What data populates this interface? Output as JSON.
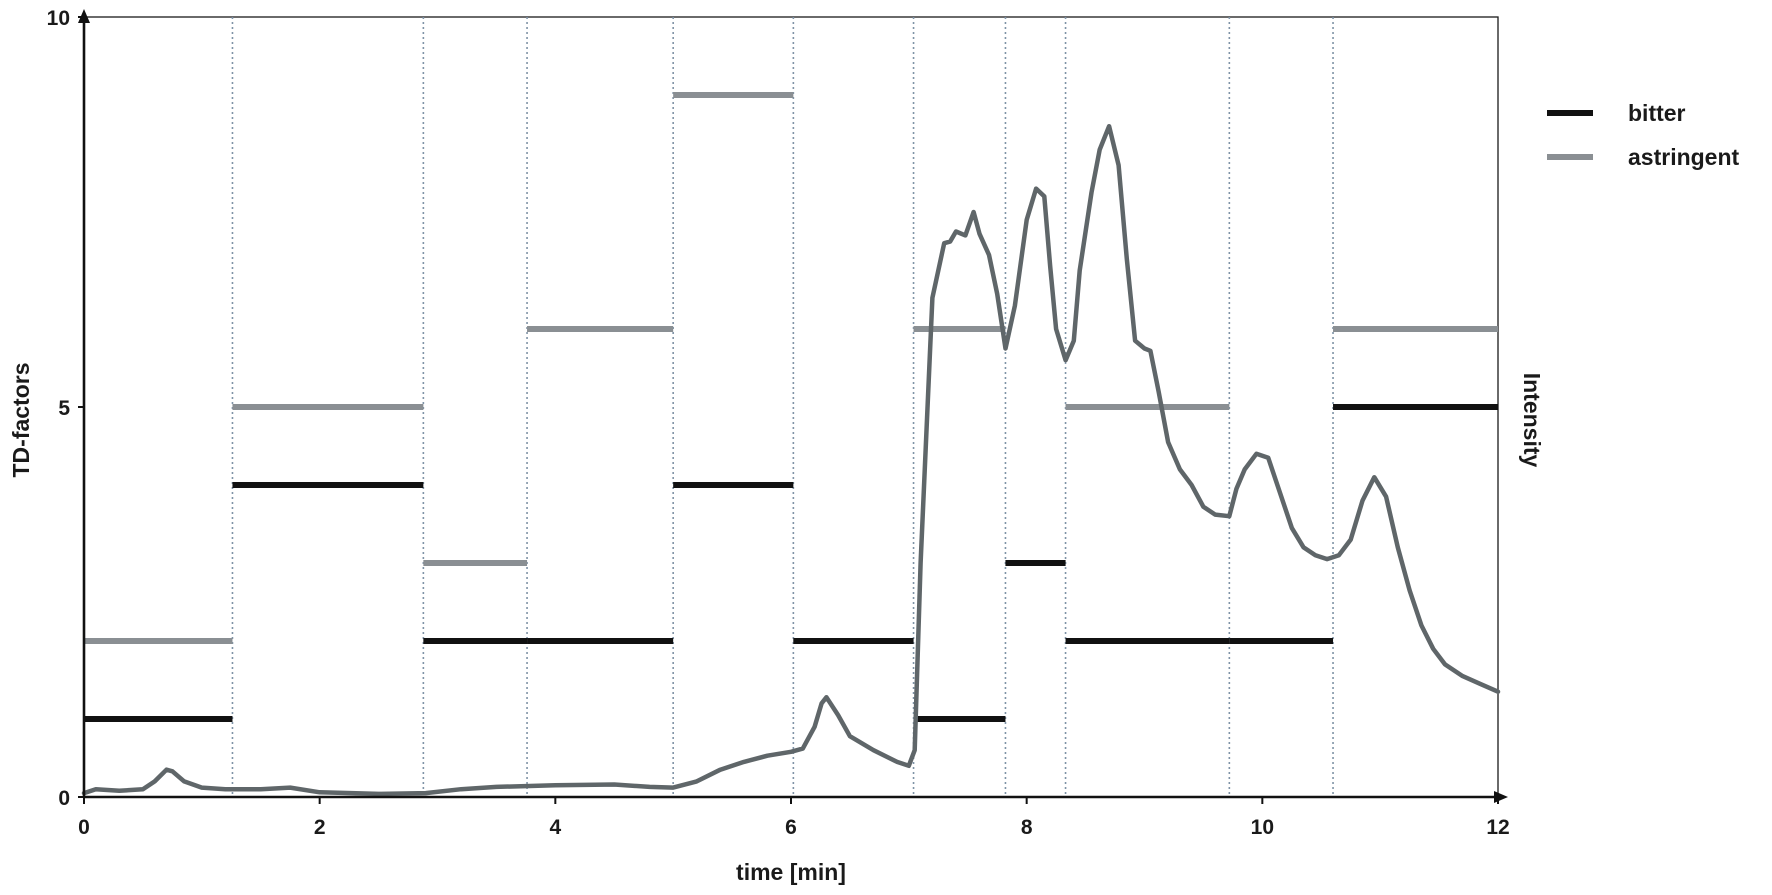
{
  "chart_data": {
    "type": "line",
    "xlabel": "time [min]",
    "ylabel": "TD-factors",
    "y2label": "Intensity",
    "xlim": [
      0,
      12
    ],
    "ylim": [
      0,
      10
    ],
    "xticks": [
      {
        "value": 0,
        "label": "0"
      },
      {
        "value": 2,
        "label": "2"
      },
      {
        "value": 4,
        "label": "4"
      },
      {
        "value": 6,
        "label": "6"
      },
      {
        "value": 8,
        "label": "8"
      },
      {
        "value": 10,
        "label": "10"
      },
      {
        "value": 12,
        "label": "12"
      }
    ],
    "yticks": [
      {
        "value": 0,
        "label": "0"
      },
      {
        "value": 5,
        "label": "5"
      },
      {
        "value": 10,
        "label": "10"
      }
    ],
    "fraction_boundaries": [
      1.26,
      2.88,
      3.76,
      5.0,
      6.02,
      7.04,
      7.82,
      8.33,
      9.72,
      10.6
    ],
    "legend": {
      "position": "right",
      "entries": [
        {
          "name": "bitter",
          "color": "#111111"
        },
        {
          "name": "astringent",
          "color": "#8a8f93"
        }
      ]
    },
    "series": [
      {
        "name": "bitter",
        "type": "segments",
        "color": "#111111",
        "segments": [
          {
            "x0": 0,
            "x1": 1.26,
            "y": 1
          },
          {
            "x0": 1.26,
            "x1": 2.88,
            "y": 4
          },
          {
            "x0": 2.88,
            "x1": 3.76,
            "y": 2
          },
          {
            "x0": 3.76,
            "x1": 5.0,
            "y": 2
          },
          {
            "x0": 5.0,
            "x1": 6.02,
            "y": 4
          },
          {
            "x0": 6.02,
            "x1": 7.04,
            "y": 2
          },
          {
            "x0": 7.04,
            "x1": 7.82,
            "y": 1
          },
          {
            "x0": 7.82,
            "x1": 8.33,
            "y": 3
          },
          {
            "x0": 8.33,
            "x1": 9.72,
            "y": 2
          },
          {
            "x0": 9.72,
            "x1": 10.6,
            "y": 2
          },
          {
            "x0": 10.6,
            "x1": 12.0,
            "y": 5
          }
        ]
      },
      {
        "name": "astringent",
        "type": "segments",
        "color": "#8a8f93",
        "segments": [
          {
            "x0": 0,
            "x1": 1.26,
            "y": 2
          },
          {
            "x0": 1.26,
            "x1": 2.88,
            "y": 5
          },
          {
            "x0": 2.88,
            "x1": 3.76,
            "y": 3
          },
          {
            "x0": 3.76,
            "x1": 5.0,
            "y": 6
          },
          {
            "x0": 5.0,
            "x1": 6.02,
            "y": 9
          },
          {
            "x0": 6.02,
            "x1": 7.04,
            "y": 2
          },
          {
            "x0": 7.04,
            "x1": 7.82,
            "y": 6
          },
          {
            "x0": 7.82,
            "x1": 8.33,
            "y": 3
          },
          {
            "x0": 8.33,
            "x1": 9.72,
            "y": 5
          },
          {
            "x0": 9.72,
            "x1": 10.6,
            "y": 2
          },
          {
            "x0": 10.6,
            "x1": 12.0,
            "y": 6
          }
        ]
      },
      {
        "type": "line",
        "color": "#5f6669",
        "x": [
          0,
          0.1,
          0.3,
          0.5,
          0.6,
          0.7,
          0.75,
          0.85,
          1.0,
          1.2,
          1.5,
          1.75,
          2.0,
          2.5,
          2.9,
          3.2,
          3.5,
          4.0,
          4.5,
          4.8,
          5.0,
          5.2,
          5.4,
          5.6,
          5.8,
          6.0,
          6.1,
          6.2,
          6.26,
          6.3,
          6.4,
          6.5,
          6.7,
          6.9,
          7.0,
          7.05,
          7.1,
          7.2,
          7.3,
          7.35,
          7.4,
          7.48,
          7.55,
          7.6,
          7.68,
          7.75,
          7.82,
          7.9,
          8.0,
          8.08,
          8.15,
          8.2,
          8.25,
          8.33,
          8.4,
          8.45,
          8.55,
          8.62,
          8.7,
          8.78,
          8.85,
          8.92,
          9.0,
          9.05,
          9.12,
          9.2,
          9.3,
          9.4,
          9.5,
          9.6,
          9.72,
          9.78,
          9.85,
          9.95,
          10.05,
          10.15,
          10.25,
          10.35,
          10.45,
          10.55,
          10.65,
          10.75,
          10.85,
          10.95,
          11.05,
          11.15,
          11.25,
          11.35,
          11.45,
          11.55,
          11.7,
          11.85,
          12.0
        ],
        "y": [
          0.05,
          0.1,
          0.08,
          0.1,
          0.2,
          0.35,
          0.33,
          0.2,
          0.12,
          0.1,
          0.1,
          0.12,
          0.06,
          0.04,
          0.05,
          0.1,
          0.13,
          0.15,
          0.16,
          0.13,
          0.12,
          0.2,
          0.35,
          0.45,
          0.53,
          0.58,
          0.62,
          0.9,
          1.2,
          1.28,
          1.05,
          0.78,
          0.6,
          0.45,
          0.4,
          0.6,
          3.0,
          6.4,
          7.1,
          7.12,
          7.25,
          7.2,
          7.5,
          7.22,
          6.95,
          6.45,
          5.75,
          6.3,
          7.4,
          7.8,
          7.7,
          6.8,
          6.0,
          5.6,
          5.85,
          6.75,
          7.75,
          8.3,
          8.6,
          8.1,
          6.9,
          5.85,
          5.75,
          5.72,
          5.2,
          4.55,
          4.2,
          4.0,
          3.72,
          3.62,
          3.6,
          3.95,
          4.2,
          4.4,
          4.35,
          3.9,
          3.45,
          3.2,
          3.1,
          3.05,
          3.1,
          3.3,
          3.8,
          4.1,
          3.85,
          3.2,
          2.65,
          2.2,
          1.9,
          1.7,
          1.55,
          1.45,
          1.35
        ]
      }
    ]
  }
}
